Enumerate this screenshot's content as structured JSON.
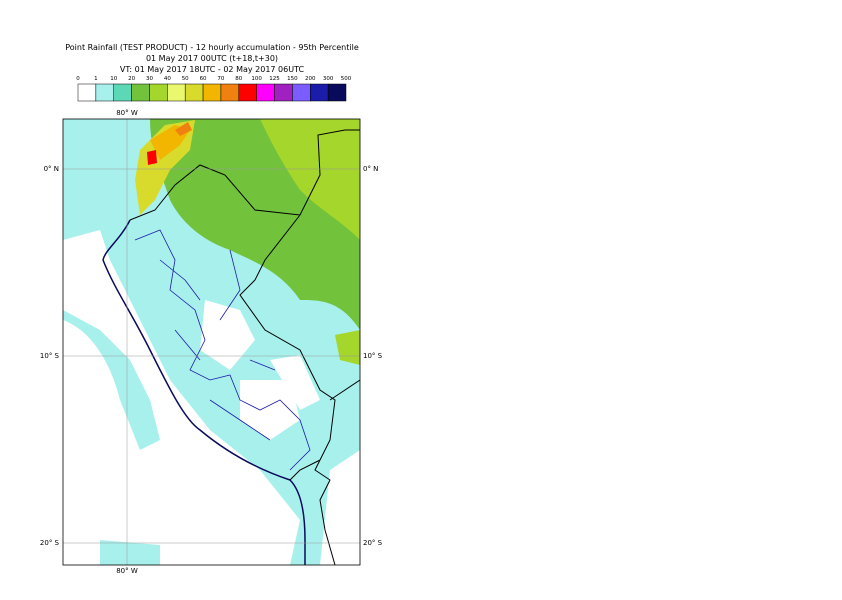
{
  "header": {
    "lines": [
      "Point Rainfall (TEST PRODUCT) - 12 hourly accumulation - 95th Percentile",
      "01 May 2017 00UTC (t+18,t+30)",
      "VT: 01 May 2017 18UTC - 02 May 2017 06UTC"
    ]
  },
  "legend": {
    "ticks": [
      "0",
      "1",
      "10",
      "20",
      "30",
      "40",
      "50",
      "60",
      "70",
      "80",
      "100",
      "125",
      "150",
      "200",
      "300",
      "500"
    ],
    "colors": [
      "#ffffff",
      "#a8f0ec",
      "#5cd8b6",
      "#72c23c",
      "#a4d62c",
      "#eaf86e",
      "#d8da2c",
      "#f2b600",
      "#f08010",
      "#ff0000",
      "#ff00ff",
      "#a020c0",
      "#7a5cff",
      "#1c1caa",
      "#0a0a5c"
    ]
  },
  "map": {
    "lon_labels": [
      "80° W",
      "80° W"
    ],
    "lat_labels": [
      "0° N",
      "0° N",
      "10° S",
      "10° S",
      "20° S",
      "20° S"
    ]
  }
}
